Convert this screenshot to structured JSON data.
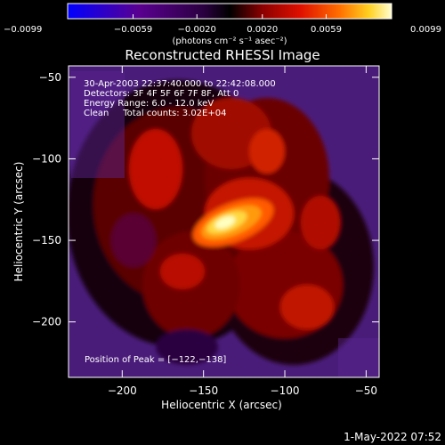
{
  "chart_data": {
    "type": "heatmap",
    "title": "Reconstructed RHESSI Image",
    "xlabel": "Heliocentric X (arcsec)",
    "ylabel": "Heliocentric Y (arcsec)",
    "xlim": [
      -233,
      -42
    ],
    "ylim": [
      -234,
      -43
    ],
    "x_ticks": [
      -200,
      -150,
      -100,
      -50
    ],
    "x_tick_labels": [
      "−200",
      "−150",
      "−100",
      "−50"
    ],
    "y_ticks": [
      -50,
      -100,
      -150,
      -200
    ],
    "y_tick_labels": [
      "−50",
      "−100",
      "−150",
      "−200"
    ],
    "colorbar": {
      "range": [
        -0.0099,
        0.0099
      ],
      "ticks": [
        -0.0099,
        -0.0059,
        -0.002,
        0.002,
        0.0059,
        0.0099
      ],
      "tick_labels": [
        "−0.0099",
        "−0.0059",
        "−0.0020",
        "0.0020",
        "0.0059",
        "0.0099"
      ],
      "unit_label": "(photons cm⁻² s⁻¹ asec⁻²)",
      "colors": [
        "#0000ff",
        "#5a0090",
        "#3a0060",
        "#000000",
        "#8a0000",
        "#e01000",
        "#ff7000",
        "#ffd020",
        "#ffffd0"
      ]
    },
    "peak": {
      "x": -122,
      "y": -138
    },
    "annotations": {
      "time_range": "30-Apr-2003 22:37:40.000 to 22:42:08.000",
      "detectors": "Detectors: 3F 4F 5F 6F 7F 8F, Att 0",
      "energy": "Energy Range: 6.0 - 12.0 keV",
      "clean": "Clean     Total counts: 3.02E+04",
      "peak_label": "Position of Peak = [−122,−138]"
    },
    "grid": false,
    "footer_date": "1-May-2022 07:52"
  }
}
